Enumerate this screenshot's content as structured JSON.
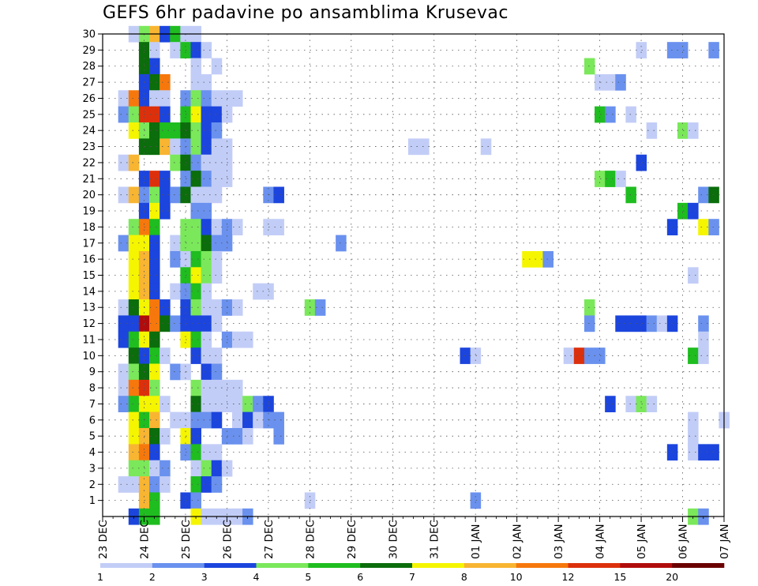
{
  "chart_data": {
    "type": "heatmap",
    "title": "GEFS 6hr padavine po ansamblima Krusevac",
    "x_tick_labels": [
      "23 DEC",
      "24 DEC",
      "25 DEC",
      "26 DEC",
      "27 DEC",
      "28 DEC",
      "29 DEC",
      "30 DEC",
      "31 DEC",
      "01 JAN",
      "02 JAN",
      "03 JAN",
      "04 JAN",
      "05 JAN",
      "06 JAN",
      "07 JAN"
    ],
    "y_tick_labels": [
      "1",
      "2",
      "3",
      "4",
      "5",
      "6",
      "7",
      "8",
      "9",
      "10",
      "11",
      "12",
      "13",
      "14",
      "15",
      "16",
      "17",
      "18",
      "19",
      "20",
      "21",
      "22",
      "23",
      "24",
      "25",
      "26",
      "27",
      "28",
      "29",
      "30"
    ],
    "x_unit": "6-hour steps from 23 DEC 00Z",
    "x_range": [
      0,
      60
    ],
    "y_range": [
      0,
      30
    ],
    "grid": "dotted",
    "colorbar": {
      "labels": [
        "1",
        "2",
        "3",
        "4",
        "5",
        "6",
        "7",
        "8",
        "10",
        "12",
        "15",
        "20"
      ],
      "colors": [
        "#c2cdf7",
        "#6a91ee",
        "#1c45dd",
        "#7ae85a",
        "#1fbd1f",
        "#0b6d0b",
        "#f5f500",
        "#f8b532",
        "#f6780d",
        "#dc300c",
        "#b10c0c",
        "#6b0000"
      ]
    },
    "cells": [
      [
        3,
        30,
        1
      ],
      [
        4,
        30,
        4
      ],
      [
        5,
        30,
        8
      ],
      [
        6,
        30,
        3
      ],
      [
        7,
        30,
        5
      ],
      [
        8,
        30,
        1
      ],
      [
        9,
        30,
        1
      ],
      [
        4,
        29,
        6
      ],
      [
        5,
        29,
        1
      ],
      [
        7,
        29,
        1
      ],
      [
        8,
        29,
        5
      ],
      [
        9,
        29,
        3
      ],
      [
        10,
        29,
        1
      ],
      [
        52,
        29,
        1
      ],
      [
        55,
        29,
        2
      ],
      [
        56,
        29,
        2
      ],
      [
        59,
        29,
        2
      ],
      [
        4,
        28,
        6
      ],
      [
        5,
        28,
        3
      ],
      [
        9,
        28,
        1
      ],
      [
        11,
        28,
        1
      ],
      [
        47,
        28,
        4
      ],
      [
        4,
        27,
        3
      ],
      [
        5,
        27,
        6
      ],
      [
        6,
        27,
        9
      ],
      [
        9,
        27,
        1
      ],
      [
        10,
        27,
        1
      ],
      [
        48,
        27,
        1
      ],
      [
        49,
        27,
        1
      ],
      [
        50,
        27,
        2
      ],
      [
        2,
        26,
        1
      ],
      [
        3,
        26,
        9
      ],
      [
        4,
        26,
        3
      ],
      [
        5,
        26,
        1
      ],
      [
        6,
        26,
        1
      ],
      [
        8,
        26,
        2
      ],
      [
        9,
        26,
        4
      ],
      [
        10,
        26,
        2
      ],
      [
        11,
        26,
        1
      ],
      [
        12,
        26,
        1
      ],
      [
        13,
        26,
        1
      ],
      [
        2,
        25,
        2
      ],
      [
        3,
        25,
        4
      ],
      [
        4,
        25,
        10
      ],
      [
        5,
        25,
        10
      ],
      [
        6,
        25,
        3
      ],
      [
        8,
        25,
        5
      ],
      [
        9,
        25,
        7
      ],
      [
        10,
        25,
        3
      ],
      [
        11,
        25,
        3
      ],
      [
        12,
        25,
        1
      ],
      [
        48,
        25,
        5
      ],
      [
        49,
        25,
        2
      ],
      [
        51,
        25,
        1
      ],
      [
        3,
        24,
        7
      ],
      [
        4,
        24,
        4
      ],
      [
        5,
        24,
        6
      ],
      [
        6,
        24,
        5
      ],
      [
        7,
        24,
        5
      ],
      [
        8,
        24,
        6
      ],
      [
        9,
        24,
        4
      ],
      [
        10,
        24,
        3
      ],
      [
        11,
        24,
        2
      ],
      [
        53,
        24,
        1
      ],
      [
        56,
        24,
        4
      ],
      [
        57,
        24,
        1
      ],
      [
        4,
        23,
        6
      ],
      [
        5,
        23,
        6
      ],
      [
        6,
        23,
        8
      ],
      [
        7,
        23,
        1
      ],
      [
        8,
        23,
        2
      ],
      [
        9,
        23,
        4
      ],
      [
        10,
        23,
        3
      ],
      [
        11,
        23,
        1
      ],
      [
        12,
        23,
        1
      ],
      [
        30,
        23,
        1
      ],
      [
        31,
        23,
        1
      ],
      [
        37,
        23,
        1
      ],
      [
        2,
        22,
        1
      ],
      [
        3,
        22,
        8
      ],
      [
        7,
        22,
        4
      ],
      [
        8,
        22,
        6
      ],
      [
        9,
        22,
        2
      ],
      [
        10,
        22,
        1
      ],
      [
        11,
        22,
        1
      ],
      [
        12,
        22,
        1
      ],
      [
        52,
        22,
        3
      ],
      [
        4,
        21,
        3
      ],
      [
        5,
        21,
        10
      ],
      [
        6,
        21,
        3
      ],
      [
        8,
        21,
        2
      ],
      [
        9,
        21,
        6
      ],
      [
        10,
        21,
        2
      ],
      [
        11,
        21,
        1
      ],
      [
        12,
        21,
        1
      ],
      [
        48,
        21,
        4
      ],
      [
        49,
        21,
        5
      ],
      [
        50,
        21,
        1
      ],
      [
        2,
        20,
        1
      ],
      [
        3,
        20,
        8
      ],
      [
        4,
        20,
        2
      ],
      [
        5,
        20,
        4
      ],
      [
        6,
        20,
        3
      ],
      [
        7,
        20,
        2
      ],
      [
        8,
        20,
        6
      ],
      [
        9,
        20,
        1
      ],
      [
        10,
        20,
        1
      ],
      [
        11,
        20,
        1
      ],
      [
        16,
        20,
        2
      ],
      [
        17,
        20,
        3
      ],
      [
        51,
        20,
        5
      ],
      [
        58,
        20,
        2
      ],
      [
        59,
        20,
        6
      ],
      [
        4,
        19,
        3
      ],
      [
        5,
        19,
        7
      ],
      [
        6,
        19,
        3
      ],
      [
        9,
        19,
        2
      ],
      [
        10,
        19,
        2
      ],
      [
        56,
        19,
        5
      ],
      [
        57,
        19,
        3
      ],
      [
        3,
        18,
        4
      ],
      [
        4,
        18,
        9
      ],
      [
        5,
        18,
        5
      ],
      [
        8,
        18,
        4
      ],
      [
        9,
        18,
        4
      ],
      [
        10,
        18,
        3
      ],
      [
        11,
        18,
        1
      ],
      [
        12,
        18,
        2
      ],
      [
        13,
        18,
        1
      ],
      [
        16,
        18,
        1
      ],
      [
        17,
        18,
        1
      ],
      [
        55,
        18,
        3
      ],
      [
        58,
        18,
        7
      ],
      [
        59,
        18,
        2
      ],
      [
        2,
        17,
        2
      ],
      [
        3,
        17,
        7
      ],
      [
        4,
        17,
        7
      ],
      [
        5,
        17,
        3
      ],
      [
        7,
        17,
        1
      ],
      [
        8,
        17,
        4
      ],
      [
        9,
        17,
        4
      ],
      [
        10,
        17,
        6
      ],
      [
        11,
        17,
        2
      ],
      [
        12,
        17,
        2
      ],
      [
        23,
        17,
        2
      ],
      [
        3,
        16,
        7
      ],
      [
        4,
        16,
        8
      ],
      [
        5,
        16,
        3
      ],
      [
        7,
        16,
        2
      ],
      [
        8,
        16,
        1
      ],
      [
        9,
        16,
        5
      ],
      [
        10,
        16,
        4
      ],
      [
        11,
        16,
        1
      ],
      [
        41,
        16,
        7
      ],
      [
        42,
        16,
        7
      ],
      [
        43,
        16,
        2
      ],
      [
        3,
        15,
        7
      ],
      [
        4,
        15,
        8
      ],
      [
        5,
        15,
        3
      ],
      [
        8,
        15,
        5
      ],
      [
        9,
        15,
        7
      ],
      [
        10,
        15,
        4
      ],
      [
        11,
        15,
        1
      ],
      [
        57,
        15,
        1
      ],
      [
        3,
        14,
        7
      ],
      [
        4,
        14,
        8
      ],
      [
        5,
        14,
        3
      ],
      [
        7,
        14,
        1
      ],
      [
        8,
        14,
        2
      ],
      [
        9,
        14,
        5
      ],
      [
        10,
        14,
        1
      ],
      [
        15,
        14,
        1
      ],
      [
        16,
        14,
        1
      ],
      [
        2,
        13,
        1
      ],
      [
        3,
        13,
        6
      ],
      [
        4,
        13,
        7
      ],
      [
        5,
        13,
        9
      ],
      [
        6,
        13,
        3
      ],
      [
        8,
        13,
        3
      ],
      [
        9,
        13,
        4
      ],
      [
        10,
        13,
        1
      ],
      [
        11,
        13,
        1
      ],
      [
        12,
        13,
        2
      ],
      [
        13,
        13,
        1
      ],
      [
        20,
        13,
        4
      ],
      [
        21,
        13,
        2
      ],
      [
        47,
        13,
        4
      ],
      [
        2,
        12,
        3
      ],
      [
        3,
        12,
        3
      ],
      [
        4,
        12,
        11
      ],
      [
        5,
        12,
        9
      ],
      [
        6,
        12,
        6
      ],
      [
        7,
        12,
        2
      ],
      [
        8,
        12,
        3
      ],
      [
        9,
        12,
        3
      ],
      [
        10,
        12,
        3
      ],
      [
        11,
        12,
        1
      ],
      [
        47,
        12,
        2
      ],
      [
        50,
        12,
        3
      ],
      [
        51,
        12,
        3
      ],
      [
        52,
        12,
        3
      ],
      [
        53,
        12,
        2
      ],
      [
        54,
        12,
        1
      ],
      [
        55,
        12,
        3
      ],
      [
        58,
        12,
        2
      ],
      [
        2,
        11,
        3
      ],
      [
        3,
        11,
        5
      ],
      [
        4,
        11,
        7
      ],
      [
        5,
        11,
        6
      ],
      [
        8,
        11,
        7
      ],
      [
        9,
        11,
        5
      ],
      [
        10,
        11,
        1
      ],
      [
        12,
        11,
        2
      ],
      [
        13,
        11,
        1
      ],
      [
        14,
        11,
        1
      ],
      [
        58,
        11,
        1
      ],
      [
        3,
        10,
        6
      ],
      [
        4,
        10,
        3
      ],
      [
        5,
        10,
        5
      ],
      [
        6,
        10,
        1
      ],
      [
        9,
        10,
        3
      ],
      [
        10,
        10,
        1
      ],
      [
        11,
        10,
        1
      ],
      [
        35,
        10,
        3
      ],
      [
        36,
        10,
        1
      ],
      [
        45,
        10,
        1
      ],
      [
        46,
        10,
        10
      ],
      [
        47,
        10,
        2
      ],
      [
        48,
        10,
        2
      ],
      [
        57,
        10,
        5
      ],
      [
        58,
        10,
        1
      ],
      [
        2,
        9,
        1
      ],
      [
        3,
        9,
        4
      ],
      [
        4,
        9,
        6
      ],
      [
        5,
        9,
        7
      ],
      [
        7,
        9,
        2
      ],
      [
        8,
        9,
        1
      ],
      [
        10,
        9,
        3
      ],
      [
        11,
        9,
        2
      ],
      [
        2,
        8,
        1
      ],
      [
        3,
        8,
        9
      ],
      [
        4,
        8,
        10
      ],
      [
        5,
        8,
        4
      ],
      [
        9,
        8,
        4
      ],
      [
        10,
        8,
        1
      ],
      [
        11,
        8,
        1
      ],
      [
        12,
        8,
        1
      ],
      [
        13,
        8,
        1
      ],
      [
        2,
        7,
        2
      ],
      [
        3,
        7,
        5
      ],
      [
        4,
        7,
        7
      ],
      [
        5,
        7,
        7
      ],
      [
        6,
        7,
        1
      ],
      [
        9,
        7,
        6
      ],
      [
        10,
        7,
        1
      ],
      [
        11,
        7,
        1
      ],
      [
        12,
        7,
        1
      ],
      [
        13,
        7,
        1
      ],
      [
        14,
        7,
        4
      ],
      [
        15,
        7,
        2
      ],
      [
        16,
        7,
        3
      ],
      [
        49,
        7,
        3
      ],
      [
        51,
        7,
        1
      ],
      [
        52,
        7,
        4
      ],
      [
        53,
        7,
        1
      ],
      [
        3,
        6,
        7
      ],
      [
        4,
        6,
        5
      ],
      [
        5,
        6,
        8
      ],
      [
        7,
        6,
        1
      ],
      [
        8,
        6,
        1
      ],
      [
        9,
        6,
        2
      ],
      [
        10,
        6,
        2
      ],
      [
        11,
        6,
        3
      ],
      [
        13,
        6,
        1
      ],
      [
        14,
        6,
        3
      ],
      [
        15,
        6,
        1
      ],
      [
        16,
        6,
        2
      ],
      [
        17,
        6,
        2
      ],
      [
        57,
        6,
        1
      ],
      [
        60,
        6,
        1
      ],
      [
        3,
        5,
        7
      ],
      [
        4,
        5,
        8
      ],
      [
        5,
        5,
        6
      ],
      [
        6,
        5,
        1
      ],
      [
        8,
        5,
        7
      ],
      [
        9,
        5,
        3
      ],
      [
        12,
        5,
        2
      ],
      [
        13,
        5,
        2
      ],
      [
        14,
        5,
        1
      ],
      [
        17,
        5,
        2
      ],
      [
        57,
        5,
        1
      ],
      [
        3,
        4,
        8
      ],
      [
        4,
        4,
        9
      ],
      [
        5,
        4,
        3
      ],
      [
        8,
        4,
        2
      ],
      [
        9,
        4,
        5
      ],
      [
        10,
        4,
        1
      ],
      [
        11,
        4,
        1
      ],
      [
        55,
        4,
        3
      ],
      [
        57,
        4,
        1
      ],
      [
        58,
        4,
        3
      ],
      [
        59,
        4,
        3
      ],
      [
        3,
        3,
        4
      ],
      [
        4,
        3,
        4
      ],
      [
        5,
        3,
        1
      ],
      [
        6,
        3,
        2
      ],
      [
        9,
        3,
        1
      ],
      [
        10,
        3,
        4
      ],
      [
        11,
        3,
        3
      ],
      [
        12,
        3,
        1
      ],
      [
        2,
        2,
        1
      ],
      [
        3,
        2,
        1
      ],
      [
        4,
        2,
        8
      ],
      [
        5,
        2,
        2
      ],
      [
        6,
        2,
        1
      ],
      [
        9,
        2,
        5
      ],
      [
        10,
        2,
        3
      ],
      [
        11,
        2,
        2
      ],
      [
        4,
        1,
        8
      ],
      [
        5,
        1,
        5
      ],
      [
        8,
        1,
        3
      ],
      [
        9,
        1,
        2
      ],
      [
        20,
        1,
        1
      ],
      [
        36,
        1,
        2
      ],
      [
        3,
        0,
        3
      ],
      [
        4,
        0,
        5
      ],
      [
        5,
        0,
        5
      ],
      [
        9,
        0,
        7
      ],
      [
        10,
        0,
        1
      ],
      [
        11,
        0,
        1
      ],
      [
        12,
        0,
        1
      ],
      [
        13,
        0,
        1
      ],
      [
        14,
        0,
        2
      ],
      [
        57,
        0,
        4
      ],
      [
        58,
        0,
        2
      ]
    ]
  }
}
